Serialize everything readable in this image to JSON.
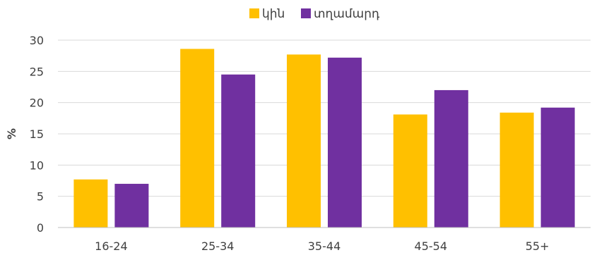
{
  "chart_data": {
    "type": "bar",
    "title": "",
    "xlabel": "",
    "ylabel": "%",
    "categories": [
      "16-24",
      "25-34",
      "35-44",
      "45-54",
      "55+"
    ],
    "series": [
      {
        "name": "կին",
        "color": "#FFC000",
        "values": [
          7.7,
          28.6,
          27.7,
          18.1,
          18.4
        ]
      },
      {
        "name": "տղամարդ",
        "color": "#7030A0",
        "values": [
          7.0,
          24.5,
          27.2,
          22.0,
          19.2
        ]
      }
    ],
    "ylim": [
      0,
      30
    ],
    "yticks": [
      0,
      5,
      10,
      15,
      20,
      25,
      30
    ],
    "grid": true,
    "legend_position": "top-center"
  }
}
